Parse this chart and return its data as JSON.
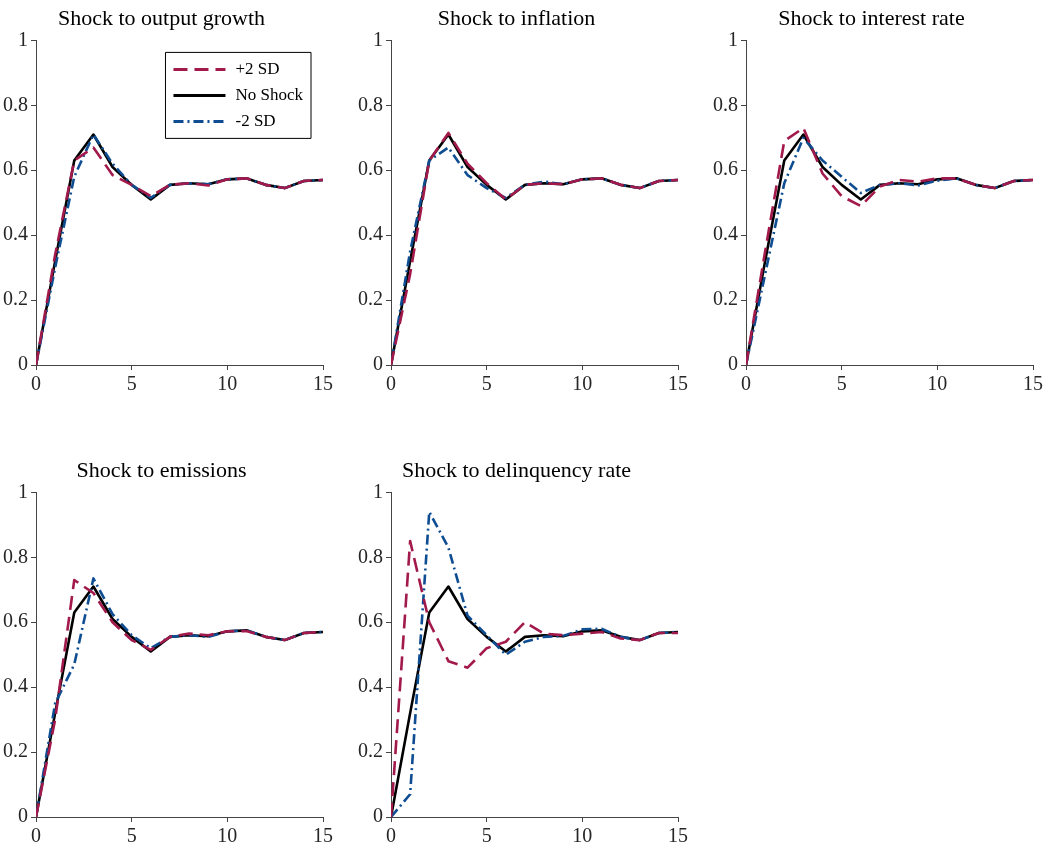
{
  "chart_data": [
    {
      "type": "line",
      "title": "Shock to output growth",
      "x": [
        0,
        1,
        2,
        3,
        4,
        5,
        6,
        7,
        8,
        9,
        10,
        11,
        12,
        13,
        14,
        15
      ],
      "xlim": [
        0,
        15
      ],
      "xticks": [
        0,
        5,
        10,
        15
      ],
      "ylim": [
        0,
        1
      ],
      "yticks": [
        0,
        0.2,
        0.4,
        0.6,
        0.8,
        1
      ],
      "legend": "top right",
      "grid": false,
      "series": [
        {
          "name": "+2 SD",
          "color": "#a2194b",
          "line_style": "dashed",
          "values": [
            0,
            0.34,
            0.63,
            0.67,
            0.585,
            0.555,
            0.52,
            0.555,
            0.56,
            0.553,
            0.572,
            0.575,
            0.555,
            0.545,
            0.567,
            0.57
          ]
        },
        {
          "name": "No Shock",
          "color": "#000000",
          "line_style": "solid",
          "values": [
            0,
            0.32,
            0.63,
            0.71,
            0.61,
            0.555,
            0.51,
            0.555,
            0.56,
            0.557,
            0.572,
            0.575,
            0.555,
            0.545,
            0.567,
            0.57
          ]
        },
        {
          "name": "-2 SD",
          "color": "#0e4d92",
          "line_style": "dotted",
          "values": [
            0,
            0.3,
            0.58,
            0.71,
            0.62,
            0.555,
            0.515,
            0.555,
            0.56,
            0.557,
            0.572,
            0.575,
            0.555,
            0.545,
            0.567,
            0.57
          ]
        }
      ]
    },
    {
      "type": "line",
      "title": "Shock to inflation",
      "x": [
        0,
        1,
        2,
        3,
        4,
        5,
        6,
        7,
        8,
        9,
        10,
        11,
        12,
        13,
        14,
        15
      ],
      "xlim": [
        0,
        15
      ],
      "xticks": [
        0,
        5,
        10,
        15
      ],
      "ylim": [
        0,
        1
      ],
      "yticks": [
        0,
        0.2,
        0.4,
        0.6,
        0.8,
        1
      ],
      "grid": false,
      "series": [
        {
          "color": "#a2194b",
          "line_style": "dashed",
          "values": [
            0,
            0.28,
            0.63,
            0.715,
            0.62,
            0.56,
            0.51,
            0.555,
            0.56,
            0.557,
            0.572,
            0.575,
            0.555,
            0.545,
            0.567,
            0.57
          ]
        },
        {
          "color": "#000000",
          "line_style": "solid",
          "values": [
            0,
            0.32,
            0.63,
            0.71,
            0.61,
            0.555,
            0.51,
            0.555,
            0.56,
            0.557,
            0.572,
            0.575,
            0.555,
            0.545,
            0.567,
            0.57
          ]
        },
        {
          "color": "#0e4d92",
          "line_style": "dotted",
          "values": [
            0,
            0.35,
            0.63,
            0.67,
            0.585,
            0.545,
            0.515,
            0.555,
            0.565,
            0.557,
            0.572,
            0.575,
            0.555,
            0.545,
            0.567,
            0.57
          ]
        }
      ]
    },
    {
      "type": "line",
      "title": "Shock to interest rate",
      "x": [
        0,
        1,
        2,
        3,
        4,
        5,
        6,
        7,
        8,
        9,
        10,
        11,
        12,
        13,
        14,
        15
      ],
      "xlim": [
        0,
        15
      ],
      "xticks": [
        0,
        5,
        10,
        15
      ],
      "ylim": [
        0,
        1
      ],
      "yticks": [
        0,
        0.2,
        0.4,
        0.6,
        0.8,
        1
      ],
      "grid": false,
      "series": [
        {
          "color": "#a2194b",
          "line_style": "dashed",
          "values": [
            0,
            0.35,
            0.69,
            0.73,
            0.59,
            0.52,
            0.49,
            0.55,
            0.57,
            0.565,
            0.575,
            0.575,
            0.555,
            0.545,
            0.567,
            0.57
          ]
        },
        {
          "color": "#000000",
          "line_style": "solid",
          "values": [
            0,
            0.32,
            0.63,
            0.71,
            0.61,
            0.555,
            0.51,
            0.555,
            0.56,
            0.557,
            0.572,
            0.575,
            0.555,
            0.545,
            0.567,
            0.57
          ]
        },
        {
          "color": "#0e4d92",
          "line_style": "dotted",
          "values": [
            0,
            0.28,
            0.56,
            0.7,
            0.63,
            0.58,
            0.53,
            0.555,
            0.56,
            0.553,
            0.568,
            0.575,
            0.555,
            0.545,
            0.567,
            0.57
          ]
        }
      ]
    },
    {
      "type": "line",
      "title": "Shock to emissions",
      "x": [
        0,
        1,
        2,
        3,
        4,
        5,
        6,
        7,
        8,
        9,
        10,
        11,
        12,
        13,
        14,
        15
      ],
      "xlim": [
        0,
        15
      ],
      "xticks": [
        0,
        5,
        10,
        15
      ],
      "ylim": [
        0,
        1
      ],
      "yticks": [
        0,
        0.2,
        0.4,
        0.6,
        0.8,
        1
      ],
      "grid": false,
      "series": [
        {
          "color": "#a2194b",
          "line_style": "dashed",
          "values": [
            0,
            0.3,
            0.73,
            0.69,
            0.6,
            0.545,
            0.515,
            0.555,
            0.565,
            0.56,
            0.572,
            0.573,
            0.555,
            0.545,
            0.567,
            0.57
          ]
        },
        {
          "color": "#000000",
          "line_style": "solid",
          "values": [
            0,
            0.32,
            0.63,
            0.71,
            0.61,
            0.555,
            0.51,
            0.555,
            0.56,
            0.557,
            0.572,
            0.575,
            0.555,
            0.545,
            0.567,
            0.57
          ]
        },
        {
          "color": "#0e4d92",
          "line_style": "dotted",
          "values": [
            0,
            0.35,
            0.47,
            0.735,
            0.625,
            0.56,
            0.52,
            0.555,
            0.56,
            0.555,
            0.572,
            0.575,
            0.555,
            0.545,
            0.567,
            0.57
          ]
        }
      ]
    },
    {
      "type": "line",
      "title": "Shock to delinquency rate",
      "x": [
        0,
        1,
        2,
        3,
        4,
        5,
        6,
        7,
        8,
        9,
        10,
        11,
        12,
        13,
        14,
        15
      ],
      "xlim": [
        0,
        15
      ],
      "xticks": [
        0,
        5,
        10,
        15
      ],
      "ylim": [
        0,
        1
      ],
      "yticks": [
        0,
        0.2,
        0.4,
        0.6,
        0.8,
        1
      ],
      "grid": false,
      "series": [
        {
          "color": "#a2194b",
          "line_style": "dashed",
          "values": [
            0,
            0.85,
            0.6,
            0.48,
            0.46,
            0.52,
            0.54,
            0.6,
            0.565,
            0.56,
            0.565,
            0.57,
            0.55,
            0.545,
            0.567,
            0.567
          ]
        },
        {
          "color": "#000000",
          "line_style": "solid",
          "values": [
            0,
            0.32,
            0.63,
            0.71,
            0.61,
            0.555,
            0.51,
            0.555,
            0.56,
            0.557,
            0.572,
            0.575,
            0.555,
            0.545,
            0.567,
            0.57
          ]
        },
        {
          "color": "#0e4d92",
          "line_style": "dotted",
          "values": [
            0,
            0.07,
            0.94,
            0.83,
            0.62,
            0.56,
            0.5,
            0.54,
            0.555,
            0.558,
            0.578,
            0.58,
            0.555,
            0.545,
            0.567,
            0.57
          ]
        }
      ]
    }
  ]
}
